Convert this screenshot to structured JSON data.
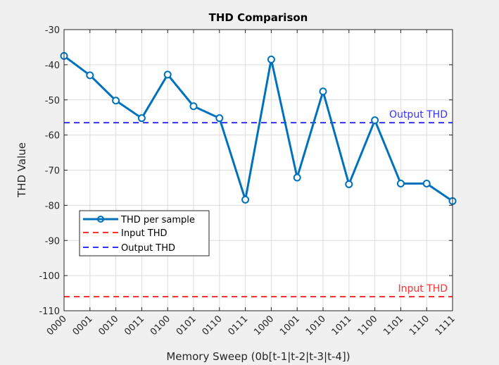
{
  "chart_data": {
    "type": "line",
    "title": "THD Comparison",
    "xlabel": "Memory Sweep (0b[t-1|t-2|t-3|t-4])",
    "ylabel": "THD Value",
    "categories": [
      "0000",
      "0001",
      "0010",
      "0011",
      "0100",
      "0101",
      "0110",
      "0111",
      "1000",
      "1001",
      "1010",
      "1011",
      "1100",
      "1101",
      "1110",
      "1111"
    ],
    "ylim": [
      -110,
      -30
    ],
    "yticks": [
      -30,
      -40,
      -50,
      -60,
      -70,
      -80,
      -90,
      -100,
      -110
    ],
    "grid": true,
    "legend_position": "left",
    "series": [
      {
        "name": "THD per sample",
        "color": "#0072bd",
        "style": "line-marker-circle",
        "values": [
          -37.5,
          -43,
          -50.2,
          -55.2,
          -42.8,
          -51.8,
          -55.2,
          -78.4,
          -38.5,
          -72.1,
          -47.6,
          -74,
          -55.8,
          -73.8,
          -73.8,
          -78.8
        ]
      },
      {
        "name": "Input THD",
        "color": "#ff3333",
        "style": "dashed",
        "value": -106
      },
      {
        "name": "Output THD",
        "color": "#3333ff",
        "style": "dashed",
        "value": -56.5
      }
    ],
    "annotations": [
      {
        "text": "Output THD",
        "y": -56.5,
        "color": "#3333ff"
      },
      {
        "text": "Input THD",
        "y": -106,
        "color": "#ff3333"
      }
    ]
  }
}
